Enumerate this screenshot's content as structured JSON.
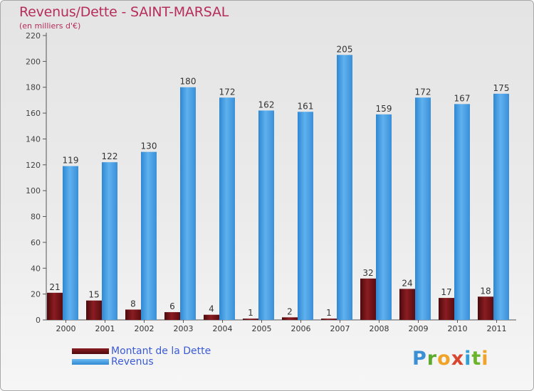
{
  "title": "Revenus/Dette - SAINT-MARSAL",
  "subtitle": "(en milliers d'€)",
  "logo_text": "Proxiti",
  "colors": {
    "title": "#b62d5a",
    "dette": "#6b0f14",
    "revenus": "#3d9be6",
    "legend_text": "#3b5bd6"
  },
  "legend": [
    {
      "label": "Montant de la Dette",
      "color": "#6b0f14"
    },
    {
      "label": "Revenus",
      "color": "#3d9be6"
    }
  ],
  "chart_data": {
    "type": "bar",
    "title": "Revenus/Dette - SAINT-MARSAL",
    "subtitle": "(en milliers d'€)",
    "categories": [
      "2000",
      "2001",
      "2002",
      "2003",
      "2004",
      "2005",
      "2006",
      "2007",
      "2008",
      "2009",
      "2010",
      "2011"
    ],
    "series": [
      {
        "name": "Montant de la Dette",
        "values": [
          21,
          15,
          8,
          6,
          4,
          1,
          2,
          1,
          32,
          24,
          17,
          18
        ]
      },
      {
        "name": "Revenus",
        "values": [
          119,
          122,
          130,
          180,
          172,
          162,
          161,
          205,
          159,
          172,
          167,
          175
        ]
      }
    ],
    "ylim": [
      0,
      220
    ],
    "yticks": [
      0,
      20,
      40,
      60,
      80,
      100,
      120,
      140,
      160,
      180,
      200,
      220
    ],
    "grid": false,
    "legend_position": "bottom-left"
  }
}
